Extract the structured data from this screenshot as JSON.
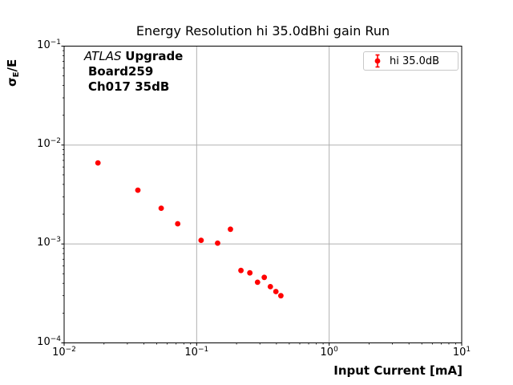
{
  "chart": {
    "title": "Energy Resolution hi 35.0dBhi gain Run",
    "xlabel": "Input Current [mA]",
    "ylabel_parts": {
      "sigma": "σ",
      "sub": "E",
      "rest": "/E"
    }
  },
  "annotation": {
    "line1_italic": "ATLAS",
    "line1_bold": "Upgrade",
    "line2": "Board259",
    "line3": "Ch017 35dB"
  },
  "legend": {
    "label": "hi 35.0dB"
  },
  "colors": {
    "marker": "#ff0000",
    "grid": "#b0b0b0",
    "spine": "#000000",
    "legend_border": "#c8c8c8"
  },
  "chart_data": {
    "type": "scatter",
    "title": "Energy Resolution hi 35.0dBhi gain Run",
    "xlabel": "Input Current [mA]",
    "ylabel": "σ_E/E",
    "x_scale": "log",
    "y_scale": "log",
    "xlim": [
      0.01,
      10
    ],
    "ylim": [
      0.0001,
      0.1
    ],
    "grid": true,
    "legend_position": "upper right",
    "annotation_lines": [
      "ATLAS Upgrade",
      "Board259",
      "Ch017 35dB"
    ],
    "x_axis": {
      "base": "10",
      "exponents": [
        "−2",
        "−1",
        "0",
        "1"
      ],
      "values": [
        0.01,
        0.1,
        1,
        10
      ]
    },
    "y_axis": {
      "base": "10",
      "exponents": [
        "−1",
        "−2",
        "−3",
        "−4"
      ],
      "values": [
        0.1,
        0.01,
        0.001,
        0.0001
      ]
    },
    "series": [
      {
        "name": "hi 35.0dB",
        "marker": "circle-with-errorbar",
        "color": "#ff0000",
        "x": [
          0.018,
          0.036,
          0.054,
          0.072,
          0.108,
          0.144,
          0.18,
          0.216,
          0.252,
          0.288,
          0.324,
          0.36,
          0.396,
          0.432
        ],
        "y": [
          0.0066,
          0.0035,
          0.0023,
          0.0016,
          0.00109,
          0.00102,
          0.00141,
          0.00054,
          0.00051,
          0.00041,
          0.00046,
          0.00037,
          0.00033,
          0.0003
        ]
      }
    ]
  }
}
